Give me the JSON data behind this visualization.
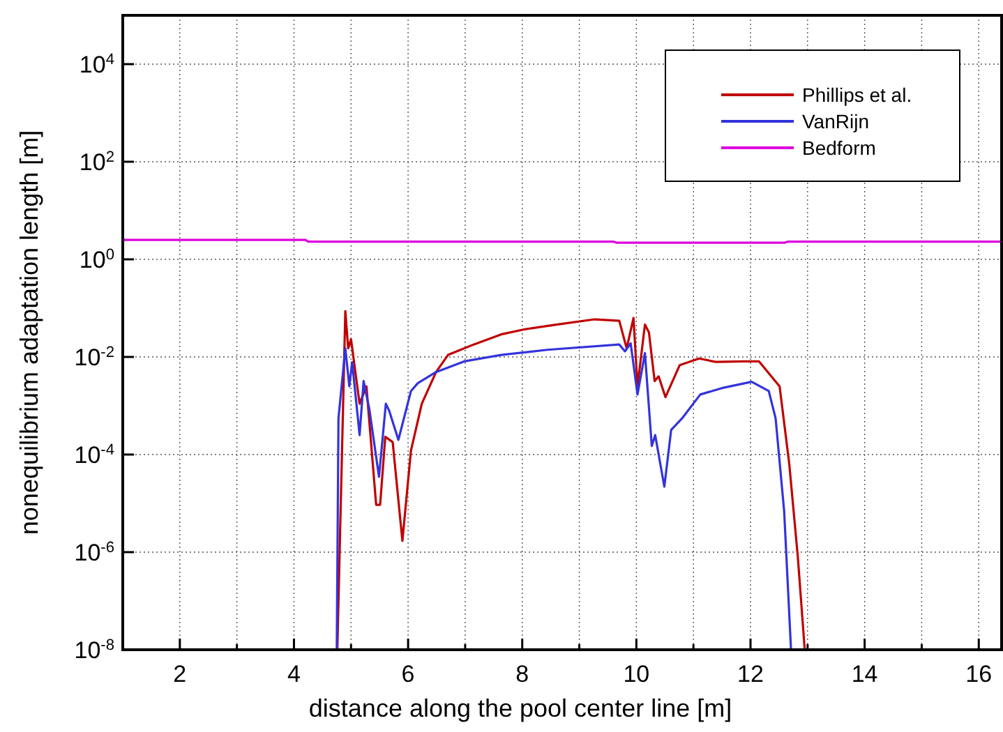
{
  "chart_data": {
    "type": "line",
    "xlabel": "distance along the pool center line [m]",
    "ylabel": "nonequilibrium adaptation length [m]",
    "log": "y",
    "grid": true,
    "legend": "top right",
    "line_style": "solid",
    "marker": "none",
    "xlim": [
      1,
      16.4
    ],
    "ylim": [
      1e-08,
      100000
    ],
    "xticks": [
      {
        "value": 1,
        "label": null
      },
      2,
      {
        "value": 3,
        "label": null
      },
      4,
      {
        "value": 5,
        "label": null
      },
      6,
      {
        "value": 7,
        "label": null
      },
      8,
      {
        "value": 9,
        "label": null
      },
      10,
      {
        "value": 11,
        "label": null
      },
      12,
      {
        "value": 13,
        "label": null
      },
      14,
      {
        "value": 15,
        "label": null
      },
      16
    ],
    "yticks": [
      {
        "value": 1e-08,
        "label": "10$^{-8}$"
      },
      {
        "value": 1e-06,
        "label": "10$^{-6}$"
      },
      {
        "value": 0.0001,
        "label": "10$^{-4}$"
      },
      {
        "value": 0.01,
        "label": "10$^{-2}$"
      },
      {
        "value": 1,
        "label": "10$^{0}$"
      },
      {
        "value": 100,
        "label": "10$^{2}$"
      },
      {
        "value": 10000,
        "label": "10$^{4}$"
      }
    ],
    "series": [
      {
        "name": "Phillips et al.",
        "color": "#c00000",
        "x": [
          4.76,
          4.9,
          4.95,
          5.0,
          5.15,
          5.27,
          5.44,
          5.51,
          5.6,
          5.73,
          5.9,
          6.05,
          6.24,
          6.49,
          6.7,
          7.15,
          7.63,
          8.05,
          8.6,
          9.27,
          9.7,
          9.83,
          9.95,
          10.02,
          10.15,
          10.22,
          10.32,
          10.39,
          10.51,
          10.76,
          11.1,
          11.39,
          11.88,
          12.15,
          12.51,
          12.68,
          12.83,
          12.95
        ],
        "values": [
          1e-08,
          0.087,
          0.015,
          0.023,
          0.0011,
          0.0025,
          9.3e-06,
          9.3e-06,
          0.00023,
          0.00018,
          1.7e-06,
          0.00012,
          0.0011,
          0.0049,
          0.011,
          0.018,
          0.029,
          0.037,
          0.046,
          0.059,
          0.055,
          0.015,
          0.063,
          0.0025,
          0.046,
          0.032,
          0.0032,
          0.004,
          0.0015,
          0.0068,
          0.0093,
          0.0079,
          0.0081,
          0.0081,
          0.0025,
          6.3e-05,
          7.8e-07,
          1e-08
        ]
      },
      {
        "name": "VanRijn",
        "color": "#3333dd",
        "x": [
          4.75,
          4.78,
          4.9,
          4.97,
          5.02,
          5.15,
          5.22,
          5.32,
          5.49,
          5.61,
          5.67,
          5.83,
          6.05,
          6.17,
          6.49,
          6.98,
          7.63,
          8.44,
          9.7,
          9.8,
          9.9,
          10.02,
          10.15,
          10.27,
          10.33,
          10.49,
          10.61,
          10.8,
          11.12,
          11.5,
          12.02,
          12.32,
          12.44,
          12.59,
          12.71
        ],
        "values": [
          1e-08,
          0.00055,
          0.015,
          0.0025,
          0.0078,
          0.00025,
          0.0032,
          0.00087,
          3.5e-05,
          0.0011,
          0.00078,
          0.0002,
          0.002,
          0.0029,
          0.0049,
          0.0081,
          0.011,
          0.014,
          0.018,
          0.013,
          0.019,
          0.0017,
          0.012,
          0.00015,
          0.00025,
          2.2e-05,
          0.00032,
          0.00055,
          0.0017,
          0.0023,
          0.0031,
          0.002,
          0.00055,
          6.8e-06,
          1e-08
        ]
      },
      {
        "name": "Bedform",
        "color": "#dd00dd",
        "x": [
          1,
          4.2,
          4.25,
          9.6,
          9.65,
          12.6,
          12.65,
          16.4
        ],
        "values": [
          2.5,
          2.5,
          2.3,
          2.3,
          2.2,
          2.2,
          2.3,
          2.3
        ]
      }
    ]
  }
}
